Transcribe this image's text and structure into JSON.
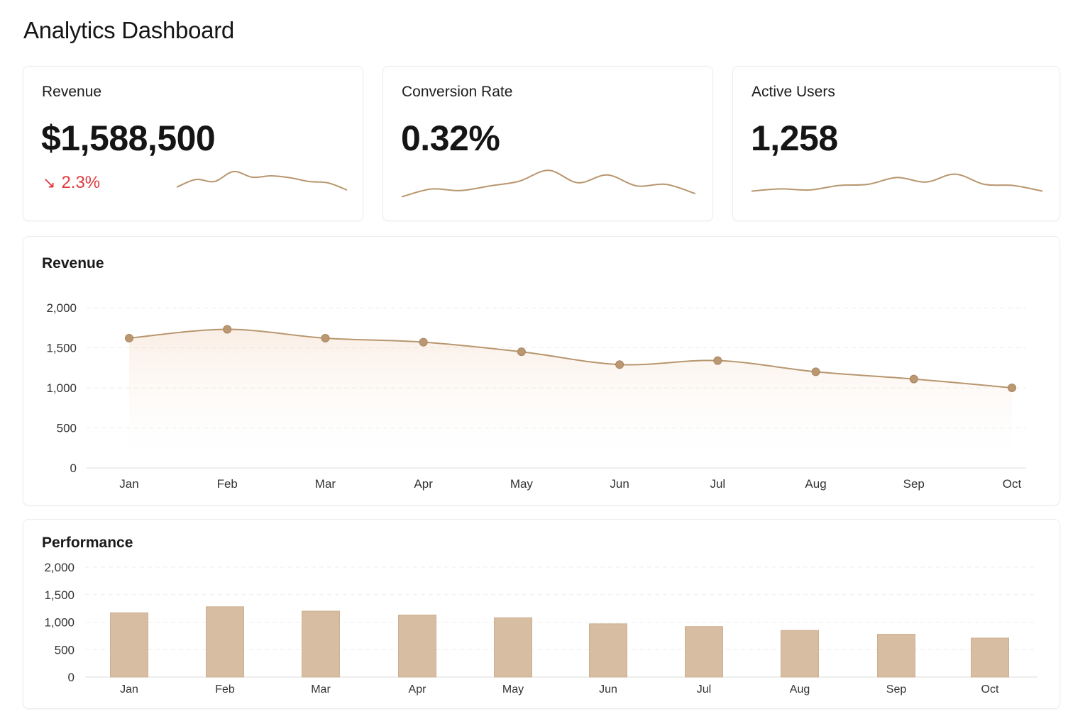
{
  "page": {
    "title": "Analytics Dashboard"
  },
  "colors": {
    "accent": "#b8966e",
    "bar_fill": "#d7bda2",
    "negative": "#e0393e"
  },
  "kpis": [
    {
      "label": "Revenue",
      "value": "$1,588,500",
      "delta": "2.3%",
      "delta_icon": "arrow-down-right-icon",
      "trend": "down",
      "spark": [
        0.35,
        0.62,
        0.55,
        0.9,
        0.7,
        0.75,
        0.68,
        0.55,
        0.5,
        0.25
      ]
    },
    {
      "label": "Conversion Rate",
      "value": "0.32%",
      "spark": [
        0.1,
        0.35,
        0.3,
        0.45,
        0.6,
        0.95,
        0.55,
        0.8,
        0.45,
        0.5,
        0.2
      ]
    },
    {
      "label": "Active Users",
      "value": "1,258",
      "spark": [
        0.2,
        0.3,
        0.25,
        0.45,
        0.5,
        0.8,
        0.6,
        0.95,
        0.5,
        0.45,
        0.2
      ]
    }
  ],
  "revenue_panel": {
    "title": "Revenue"
  },
  "performance_panel": {
    "title": "Performance"
  },
  "chart_data": [
    {
      "type": "line",
      "title": "Revenue",
      "categories": [
        "Jan",
        "Feb",
        "Mar",
        "Apr",
        "May",
        "Jun",
        "Jul",
        "Aug",
        "Sep",
        "Oct"
      ],
      "values": [
        1620,
        1730,
        1620,
        1570,
        1450,
        1290,
        1340,
        1200,
        1110,
        1000
      ],
      "ylim": [
        0,
        2000
      ],
      "yticks": [
        "0",
        "500",
        "1,000",
        "1,500",
        "2,000"
      ],
      "ytick_values": [
        0,
        500,
        1000,
        1500,
        2000
      ],
      "grid": true
    },
    {
      "type": "bar",
      "title": "Performance",
      "categories": [
        "Jan",
        "Feb",
        "Mar",
        "Apr",
        "May",
        "Jun",
        "Jul",
        "Aug",
        "Sep",
        "Oct"
      ],
      "values": [
        1170,
        1280,
        1200,
        1130,
        1080,
        970,
        920,
        850,
        780,
        710
      ],
      "ylim": [
        0,
        2000
      ],
      "yticks": [
        "0",
        "500",
        "1,000",
        "1,500",
        "2,000"
      ],
      "ytick_values": [
        0,
        500,
        1000,
        1500,
        2000
      ],
      "grid": true
    }
  ]
}
